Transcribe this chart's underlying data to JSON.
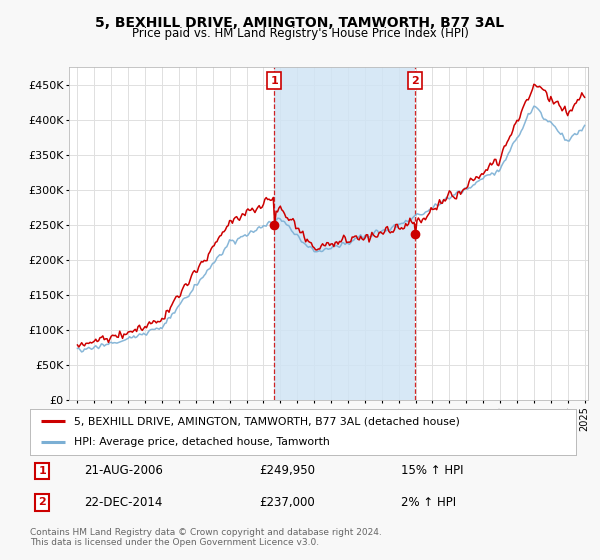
{
  "title_line1": "5, BEXHILL DRIVE, AMINGTON, TAMWORTH, B77 3AL",
  "title_line2": "Price paid vs. HM Land Registry's House Price Index (HPI)",
  "bg_color": "#f8f8f8",
  "plot_bg_color": "#ffffff",
  "grid_color": "#e0e0e0",
  "red_color": "#cc0000",
  "blue_color": "#7bafd4",
  "shade_color": "#d0e4f5",
  "ylim": [
    0,
    475000
  ],
  "yticks": [
    0,
    50000,
    100000,
    150000,
    200000,
    250000,
    300000,
    350000,
    400000,
    450000
  ],
  "ytick_labels": [
    "£0",
    "£50K",
    "£100K",
    "£150K",
    "£200K",
    "£250K",
    "£300K",
    "£350K",
    "£400K",
    "£450K"
  ],
  "sale1_year": 2006.64,
  "sale1_price": 249950,
  "sale2_year": 2014.97,
  "sale2_price": 237000,
  "sale1_date": "21-AUG-2006",
  "sale1_hpi_text": "15% ↑ HPI",
  "sale2_date": "22-DEC-2014",
  "sale2_hpi_text": "2% ↑ HPI",
  "legend_line1": "5, BEXHILL DRIVE, AMINGTON, TAMWORTH, B77 3AL (detached house)",
  "legend_line2": "HPI: Average price, detached house, Tamworth",
  "footnote": "Contains HM Land Registry data © Crown copyright and database right 2024.\nThis data is licensed under the Open Government Licence v3.0.",
  "start_year": 1995,
  "end_year": 2025
}
